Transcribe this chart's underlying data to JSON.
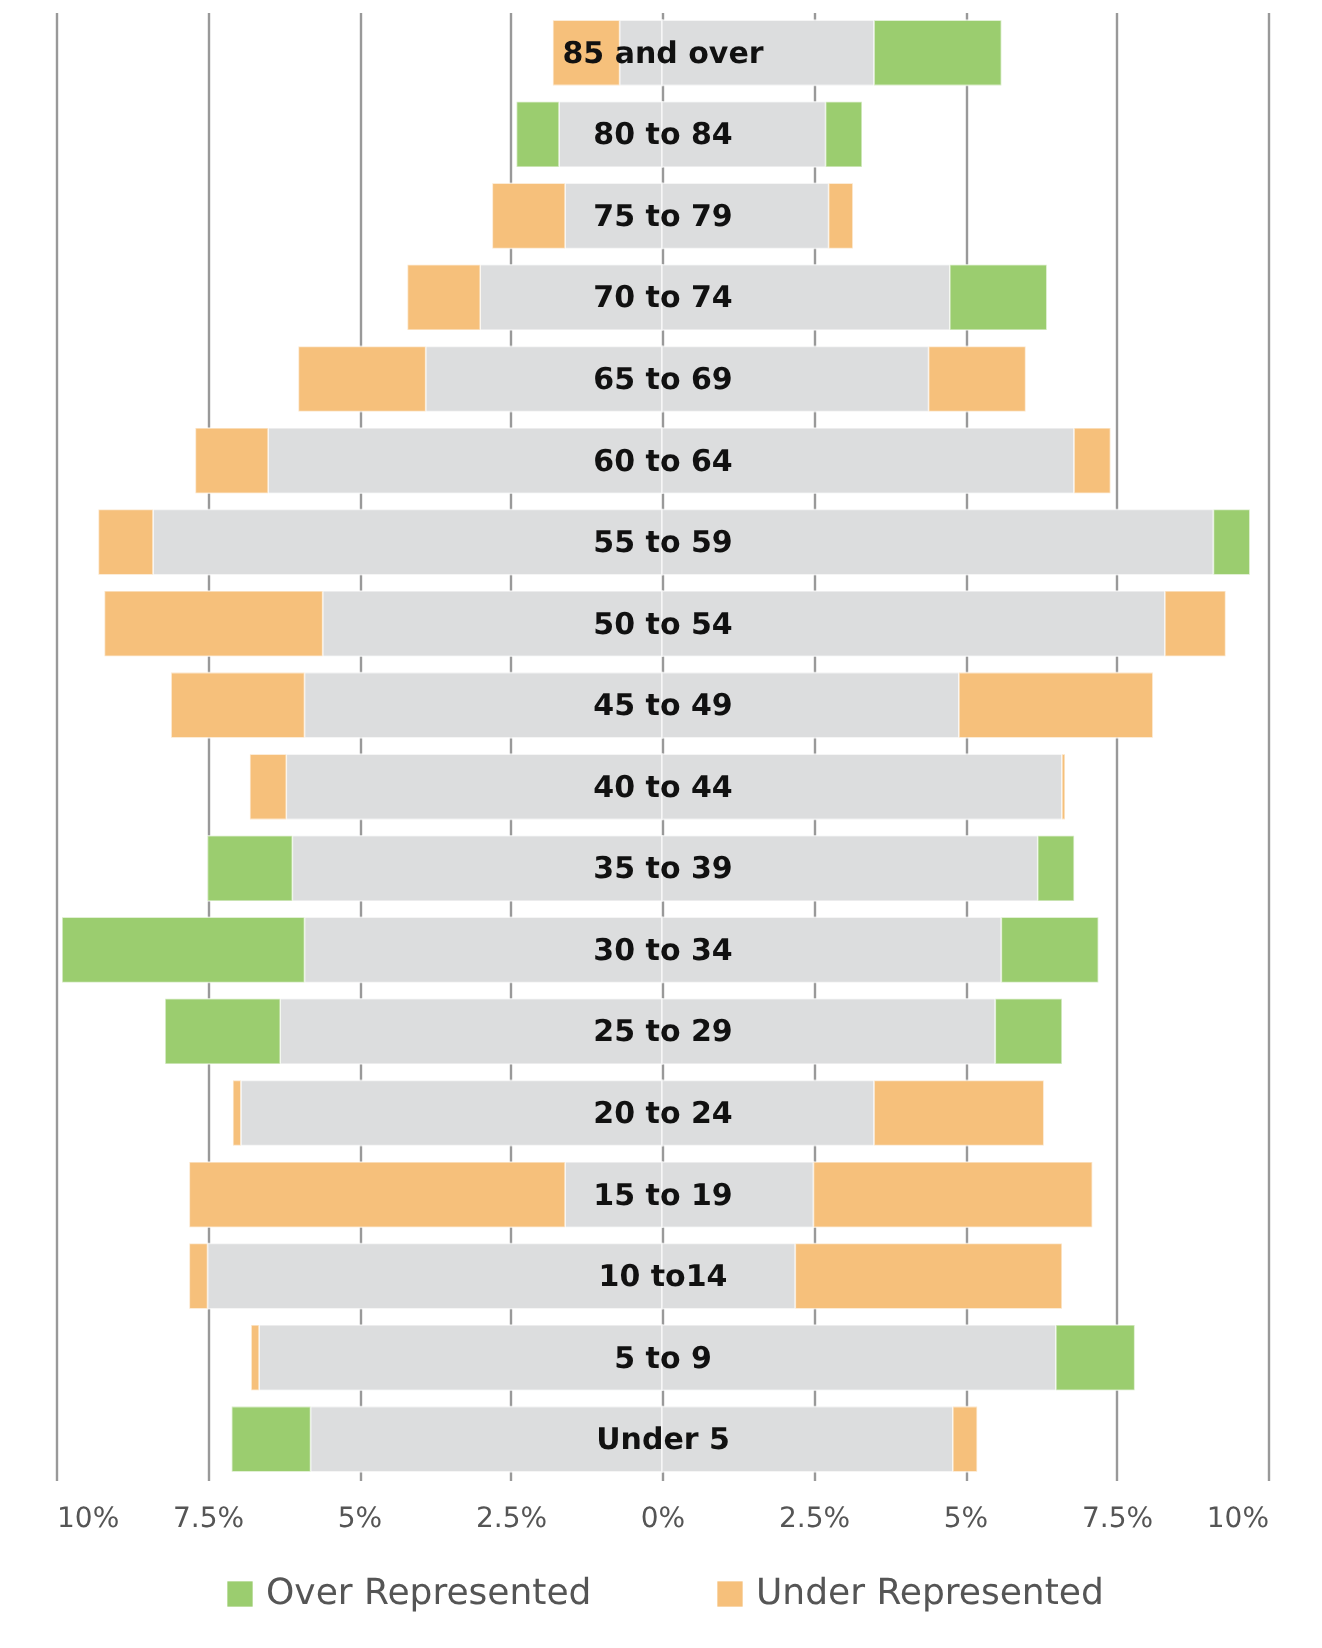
{
  "chart_data": {
    "type": "bar",
    "orientation": "horizontal",
    "stacked": true,
    "categories": [
      "85 and over",
      "80 to 84",
      "75 to 79",
      "70 to 74",
      "65 to 69",
      "60 to 64",
      "55 to 59",
      "50 to 54",
      "45 to 49",
      "40 to 44",
      "35 to 39",
      "30 to 34",
      "25 to 29",
      "20 to 24",
      "15 to 19",
      "10 to14",
      "5 to 9",
      "Under 5"
    ],
    "series": [
      {
        "color": "#dcddde",
        "values": [
          -0.7,
          -1.7,
          -1.6,
          -3.0,
          -3.9,
          -6.5,
          -8.4,
          -5.6,
          -5.9,
          -6.2,
          -6.1,
          -5.9,
          -6.3,
          -6.95,
          -1.6,
          -7.5,
          -6.65,
          -5.8
        ]
      },
      {
        "color": "#9bcd6f",
        "values": [
          null,
          -0.7,
          null,
          null,
          null,
          null,
          null,
          null,
          null,
          null,
          -1.4,
          -4.0,
          -1.9,
          null,
          null,
          null,
          null,
          -1.3
        ]
      },
      {
        "color": "#f6c07b",
        "values": [
          -1.1,
          null,
          -1.2,
          -1.2,
          -2.1,
          -1.2,
          -0.9,
          -3.6,
          -2.2,
          -0.6,
          null,
          null,
          null,
          -0.13,
          -6.2,
          -0.3,
          -0.13,
          null
        ]
      },
      {
        "color": "#dcddde",
        "values": [
          3.5,
          2.7,
          2.75,
          4.75,
          4.4,
          6.8,
          9.1,
          8.3,
          4.9,
          6.6,
          6.2,
          5.6,
          5.5,
          3.5,
          2.5,
          2.2,
          6.5,
          4.8
        ]
      },
      {
        "name": "Over Represented",
        "color": "#9bcd6f",
        "values": [
          2.1,
          0.6,
          null,
          1.6,
          null,
          null,
          0.6,
          null,
          null,
          null,
          0.6,
          1.6,
          1.1,
          null,
          null,
          null,
          1.3,
          null
        ]
      },
      {
        "name": "Under Represented",
        "color": "#f6c07b",
        "values": [
          null,
          null,
          0.4,
          null,
          1.6,
          0.6,
          null,
          1.0,
          3.2,
          0.05,
          null,
          null,
          null,
          2.8,
          4.6,
          4.4,
          null,
          0.4
        ]
      }
    ],
    "xlim": [
      -10,
      10
    ],
    "xticks": [
      {
        "value": -10,
        "label": "10%"
      },
      {
        "value": -7.5,
        "label": "7.5%"
      },
      {
        "value": -5,
        "label": "5%"
      },
      {
        "value": -2.5,
        "label": "2.5%"
      },
      {
        "value": 0,
        "label": "0%"
      },
      {
        "value": 2.5,
        "label": "2.5%"
      },
      {
        "value": 5,
        "label": "5%"
      },
      {
        "value": 7.5,
        "label": "7.5%"
      },
      {
        "value": 10,
        "label": "10%"
      }
    ],
    "grid": "x",
    "legend": "bottom"
  }
}
